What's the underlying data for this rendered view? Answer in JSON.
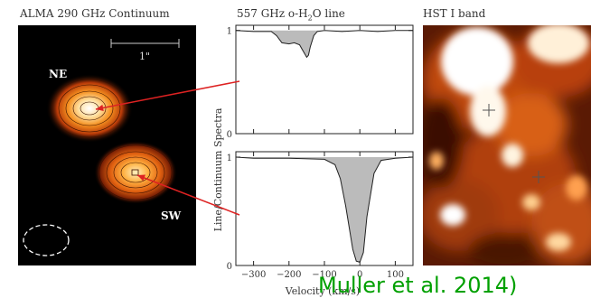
{
  "panels": {
    "alma": {
      "title": "ALMA 290 GHz Continuum",
      "scale_bar_label": "1\"",
      "source_ne": "NE",
      "source_sw": "SW"
    },
    "spectra": {
      "title_prefix": "557 GHz o-H",
      "title_sub": "2",
      "title_suffix": "O line",
      "ylabel": "Line/Continuum Spectra",
      "xlabel": "Velocity (km/s)",
      "ytick_top": "1",
      "ytick_zero": "0",
      "xtick_labels": [
        "−300",
        "−200",
        "−100",
        "0",
        "100"
      ]
    },
    "hst": {
      "title": "HST I band"
    }
  },
  "citation": "Muller et al. 2014)",
  "colors": {
    "arrow": "#dd2222",
    "absorption_fill": "#bbbbbb",
    "citation": "#00a000"
  },
  "chart_data": [
    {
      "type": "line",
      "title": "557 GHz o-H2O line",
      "xlabel": "Velocity (km/s)",
      "ylabel": "Line/Continuum Spectra",
      "xlim": [
        -350,
        150
      ],
      "ylim": [
        0,
        1.05
      ],
      "series": [
        {
          "x": [
            -350,
            -300,
            -250,
            -235,
            -220,
            -200,
            -185,
            -170,
            -160,
            -150,
            -145,
            -140,
            -130,
            -120,
            -100,
            -50,
            0,
            50,
            100,
            150
          ],
          "y": [
            1.0,
            0.99,
            0.99,
            0.95,
            0.88,
            0.87,
            0.88,
            0.86,
            0.8,
            0.74,
            0.76,
            0.84,
            0.95,
            0.99,
            1.0,
            0.99,
            1.0,
            0.99,
            1.0,
            1.0
          ]
        }
      ]
    },
    {
      "type": "line",
      "xlabel": "Velocity (km/s)",
      "ylabel": "Line/Continuum Spectra",
      "xlim": [
        -350,
        150
      ],
      "ylim": [
        0,
        1.05
      ],
      "series": [
        {
          "x": [
            -350,
            -300,
            -200,
            -100,
            -70,
            -55,
            -40,
            -30,
            -20,
            -10,
            0,
            10,
            20,
            40,
            60,
            100,
            150
          ],
          "y": [
            1.0,
            0.99,
            0.99,
            0.98,
            0.93,
            0.8,
            0.55,
            0.35,
            0.15,
            0.04,
            0.03,
            0.12,
            0.45,
            0.85,
            0.97,
            0.99,
            1.0
          ]
        }
      ]
    }
  ]
}
